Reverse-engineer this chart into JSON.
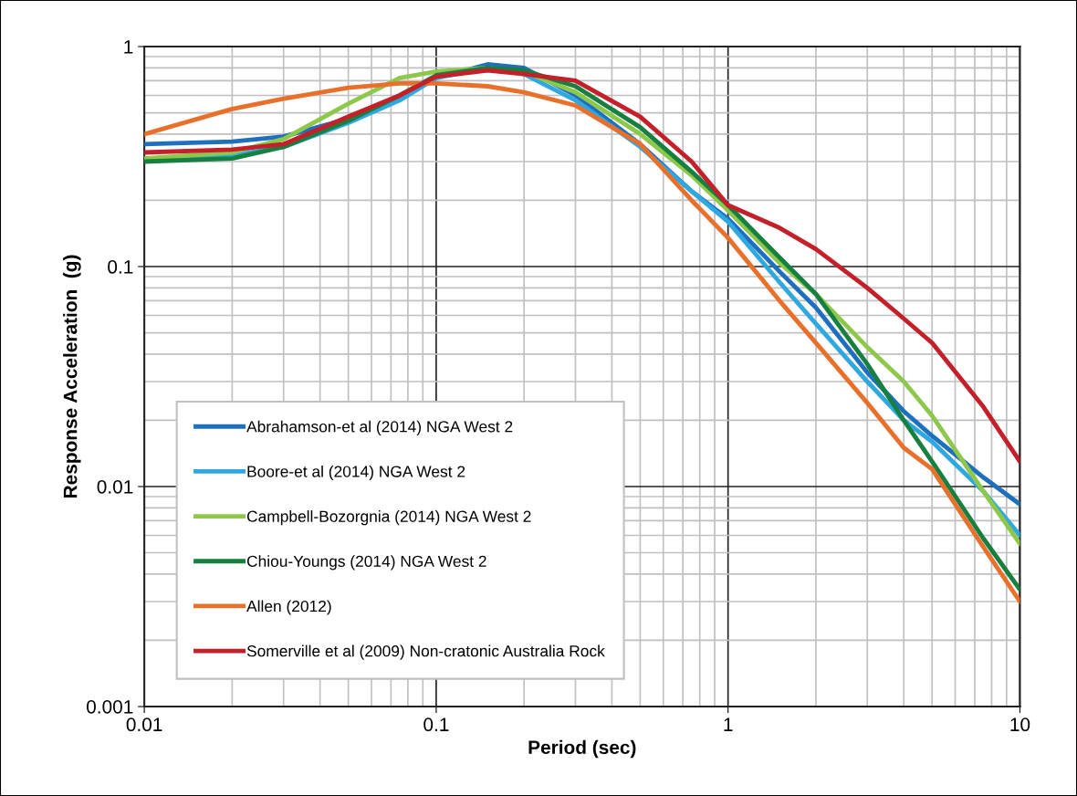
{
  "chart_data": {
    "type": "line",
    "xlabel": "Period (sec)",
    "ylabel": "Response Acceleration  (g)",
    "x": [
      0.01,
      0.02,
      0.03,
      0.05,
      0.075,
      0.1,
      0.15,
      0.2,
      0.3,
      0.5,
      0.75,
      1,
      1.5,
      2,
      3,
      4,
      5,
      7.5,
      10
    ],
    "series": [
      {
        "name": "Abrahamson-et al (2014) NGA West 2",
        "color": "#1f6fbf",
        "values": [
          0.36,
          0.37,
          0.39,
          0.47,
          0.58,
          0.72,
          0.83,
          0.8,
          0.6,
          0.36,
          0.22,
          0.165,
          0.095,
          0.065,
          0.033,
          0.022,
          0.017,
          0.011,
          0.0083
        ]
      },
      {
        "name": "Boore-et al (2014) NGA West 2",
        "color": "#2fa8e0",
        "values": [
          0.31,
          0.32,
          0.35,
          0.45,
          0.57,
          0.72,
          0.8,
          0.75,
          0.57,
          0.35,
          0.22,
          0.16,
          0.085,
          0.055,
          0.03,
          0.02,
          0.016,
          0.0095,
          0.006
        ]
      },
      {
        "name": "Campbell-Bozorgnia (2014) NGA West 2",
        "color": "#8dc84b",
        "values": [
          0.31,
          0.33,
          0.38,
          0.55,
          0.72,
          0.77,
          0.8,
          0.77,
          0.62,
          0.4,
          0.26,
          0.18,
          0.104,
          0.075,
          0.043,
          0.03,
          0.021,
          0.0095,
          0.0055
        ]
      },
      {
        "name": "Chiou-Youngs (2014) NGA West 2",
        "color": "#178040",
        "values": [
          0.3,
          0.31,
          0.35,
          0.46,
          0.6,
          0.74,
          0.8,
          0.78,
          0.66,
          0.43,
          0.27,
          0.19,
          0.11,
          0.075,
          0.036,
          0.02,
          0.013,
          0.0058,
          0.0034
        ]
      },
      {
        "name": "Allen (2012)",
        "color": "#e8702a",
        "values": [
          0.4,
          0.52,
          0.58,
          0.65,
          0.68,
          0.68,
          0.66,
          0.62,
          0.54,
          0.36,
          0.2,
          0.135,
          0.07,
          0.045,
          0.024,
          0.015,
          0.012,
          0.0053,
          0.003
        ]
      },
      {
        "name": "Somerville et al (2009) Non-cratonic Australia Rock",
        "color": "#c4202a",
        "values": [
          0.33,
          0.34,
          0.36,
          0.48,
          0.6,
          0.73,
          0.78,
          0.75,
          0.7,
          0.48,
          0.3,
          0.19,
          0.15,
          0.12,
          0.08,
          0.058,
          0.045,
          0.023,
          0.013
        ]
      }
    ],
    "log": "xy",
    "xlim": [
      0.01,
      10
    ],
    "ylim": [
      0.001,
      1
    ],
    "xticks": [
      0.01,
      0.1,
      1,
      10
    ],
    "yticks": [
      0.001,
      0.01,
      0.1,
      1
    ],
    "grid": true,
    "legend": "bottom left",
    "line_style": "solid",
    "marker": "none"
  }
}
